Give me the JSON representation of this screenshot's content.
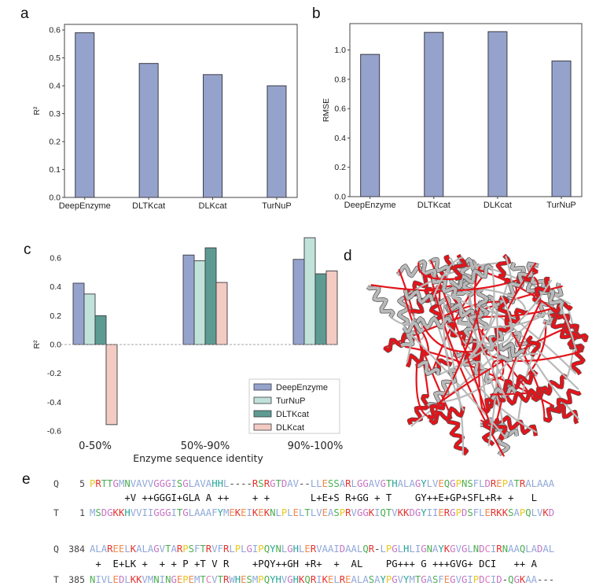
{
  "panels": {
    "a": "a",
    "b": "b",
    "c": "c",
    "d": "d",
    "e": "e"
  },
  "chart_data": [
    {
      "panel": "a",
      "type": "bar",
      "categories": [
        "DeepEnzyme",
        "DLTKcat",
        "DLKcat",
        "TurNuP"
      ],
      "values": [
        0.59,
        0.48,
        0.44,
        0.4
      ],
      "ylabel": "R²",
      "ylim": [
        0,
        0.62
      ],
      "yticks": [
        "0.0",
        "0.1",
        "0.2",
        "0.3",
        "0.4",
        "0.5",
        "0.6"
      ],
      "color": "#95a3cc"
    },
    {
      "panel": "b",
      "type": "bar",
      "categories": [
        "DeepEnzyme",
        "DLTKcat",
        "DLKcat",
        "TurNuP"
      ],
      "values": [
        0.97,
        1.12,
        1.125,
        0.925
      ],
      "ylabel": "RMSE",
      "ylim": [
        0,
        1.18
      ],
      "yticks": [
        "0.0",
        "0.2",
        "0.4",
        "0.6",
        "0.8",
        "1.0"
      ],
      "color": "#95a3cc"
    },
    {
      "panel": "c",
      "type": "bar",
      "categories": [
        "0-50%",
        "50%-90%",
        "90%-100%"
      ],
      "xlabel": "Enzyme sequence identity",
      "ylabel": "R²",
      "ylim": [
        -0.62,
        0.74
      ],
      "yticks": [
        "-0.6",
        "-0.4",
        "-0.2",
        "0.0",
        "0.2",
        "0.4",
        "0.6"
      ],
      "legend": "lower-right",
      "series": [
        {
          "name": "DeepEnzyme",
          "values": [
            0.425,
            0.62,
            0.59
          ],
          "color": "#95a3cc"
        },
        {
          "name": "TurNuP",
          "values": [
            0.35,
            0.58,
            0.74
          ],
          "color": "#c0e2d9"
        },
        {
          "name": "DLTKcat",
          "values": [
            0.2,
            0.67,
            0.49
          ],
          "color": "#5d9b92"
        },
        {
          "name": "DLKcat",
          "values": [
            -0.555,
            0.43,
            0.51
          ],
          "color": "#f3cbc2"
        }
      ]
    }
  ],
  "structure": {
    "colors": [
      "#e3141b",
      "#b9b9b9"
    ]
  },
  "alignment": {
    "blocks": [
      {
        "q_label": "Q",
        "q_start": "5",
        "q_seq": "PRTTGMNVAVVGGGISGLAVAHHL----RSRGTDAV--LLESSARLGGAVGTHALAGYLVEQGPNSFLDREPATRALAAA",
        "match": "      +V ++GGGI+GLA A ++    + +       L+E+S R+GG + T    GY++E+GP+SFL+R+ +   L",
        "t_label": "T",
        "t_start": "1",
        "t_seq": "MSDGKKHVVIIGGGITGLAAAFYMEKEIKEKNLPLELTLVEASPRVGGKIQTVKKDGYIIERGPDSFLERKKSAPQLVKD"
      },
      {
        "q_label": "Q",
        "q_start": "384",
        "q_seq": "ALAREELKALAGVTARPSFTRVFRLPLGIPQYNLGHLERVAAIDAALQR-LPGLHLIGNAYKGVGLNDCIRNAAQLADAL",
        "match": " +  E+LK +  + + P +T V R    +PQY++GH +R+  +  AL    PG+++ G +++GVG+ DCI   ++ A",
        "t_label": "T",
        "t_start": "385",
        "t_seq": "NIVLEDLKKVMNINGEPEMTCVTRWHESMPQYHVGHKQRIKELREALASAYPGVYMTGASFEGVGIPDCID-QGKAA---"
      }
    ],
    "residue_colors": {
      "A": "#8fa7d9",
      "V": "#8fa7d9",
      "L": "#8fa7d9",
      "I": "#8fa7d9",
      "M": "#8fa7d9",
      "F": "#8fa7d9",
      "W": "#8fa7d9",
      "G": "#c774c4",
      "D": "#c774c4",
      "E": "#f08a4b",
      "K": "#e3342f",
      "R": "#e3342f",
      "S": "#4caf50",
      "T": "#4caf50",
      "N": "#4caf50",
      "Q": "#4caf50",
      "H": "#26a69a",
      "Y": "#26a69a",
      "P": "#e8c81c",
      "C": "#e57ab8",
      "-": "#444444",
      "match": "#111111"
    }
  }
}
